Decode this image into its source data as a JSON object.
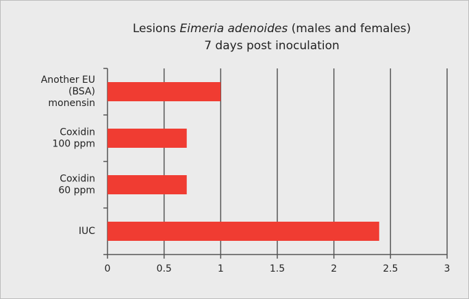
{
  "chart_data": {
    "type": "hbar",
    "title": [
      [
        {
          "text": "Lesions ",
          "italic": false
        },
        {
          "text": "Eimeria adenoides",
          "italic": true
        },
        {
          "text": " (males and females)",
          "italic": false
        }
      ],
      [
        {
          "text": "7 days post inoculation",
          "italic": false
        }
      ]
    ],
    "categories": [
      [
        "Another EU",
        "(BSA)",
        "monensin"
      ],
      [
        "Coxidin",
        "100 ppm"
      ],
      [
        "Coxidin",
        "60 ppm"
      ],
      [
        "IUC"
      ]
    ],
    "values": [
      1.0,
      0.7,
      0.7,
      2.4
    ],
    "color": "#f03c32",
    "xlim": [
      0,
      3
    ],
    "xticks": [
      0,
      0.5,
      1,
      1.5,
      2,
      2.5,
      3
    ],
    "grid": true
  }
}
